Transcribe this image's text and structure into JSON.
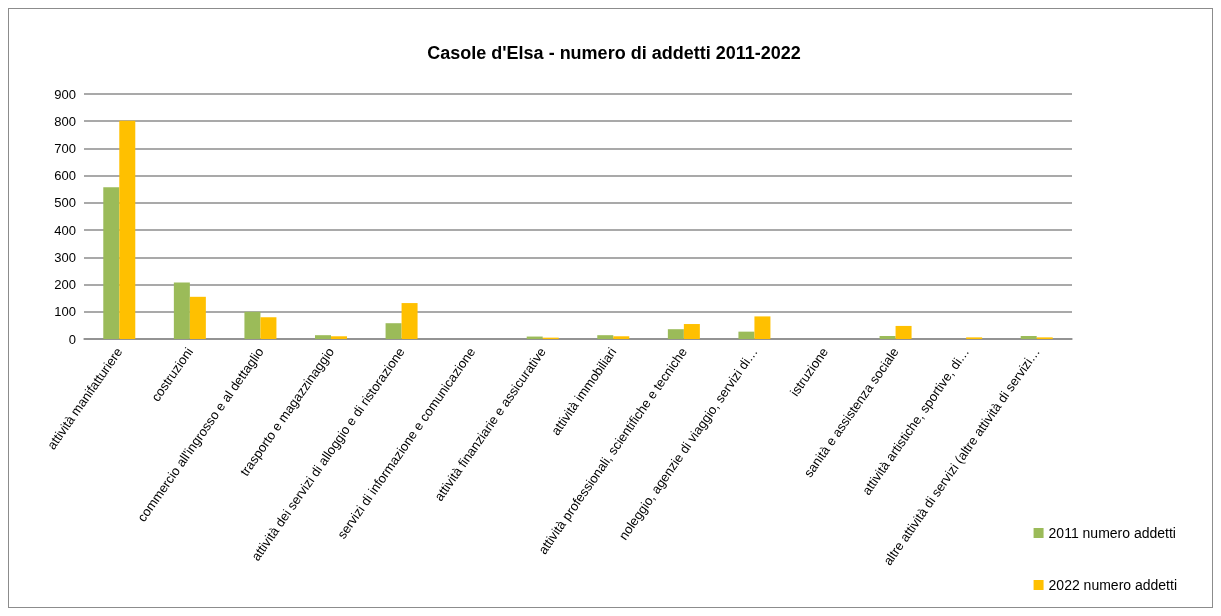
{
  "chart_data": {
    "type": "bar",
    "title": "Casole d'Elsa - numero di addetti 2011-2022",
    "categories": [
      "attività manifatturiere",
      "costruzioni",
      "commercio all'ingrosso e al dettaglio",
      "trasporto e magazzinaggio",
      "attività dei servizi di alloggio e di ristorazione",
      "servizi di informazione e comunicazione",
      "attività finanziarie e assicurative",
      "attività immobiliari",
      "attività professionali, scientifiche e tecniche",
      "noleggio, agenzie di viaggio, servizi di…",
      "istruzione",
      "sanità e assistenza sociale",
      "attività artistiche, sportive, di…",
      "altre attività di servizi (altre attività di servizi…"
    ],
    "series": [
      {
        "name": "2011 numero addetti",
        "color": "#9bbb59",
        "values": [
          557,
          208,
          100,
          14,
          58,
          0,
          9,
          14,
          36,
          27,
          0,
          11,
          0,
          11
        ]
      },
      {
        "name": "2022 numero addetti",
        "color": "#ffc000",
        "values": [
          802,
          155,
          80,
          10,
          132,
          0,
          5,
          10,
          55,
          83,
          0,
          48,
          6,
          6
        ]
      }
    ],
    "ylim": [
      0,
      900
    ],
    "yticks": [
      0,
      100,
      200,
      300,
      400,
      500,
      600,
      700,
      800,
      900
    ],
    "grid": "y",
    "legend": "bottom right"
  }
}
